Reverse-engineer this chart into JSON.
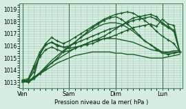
{
  "title": "",
  "xlabel": "Pression niveau de la mer( hPa )",
  "ylim": [
    1012.5,
    1019.5
  ],
  "yticks": [
    1013,
    1014,
    1015,
    1016,
    1017,
    1018,
    1019
  ],
  "day_labels": [
    "Ven",
    "Sam",
    "Dim",
    "Lun"
  ],
  "day_positions": [
    0,
    8,
    16,
    24
  ],
  "bg_color": "#d4ede0",
  "grid_color": "#aecfbe",
  "line_color": "#1a5c28",
  "total_points": 28,
  "series": [
    [
      1013.1,
      1013.0,
      1013.5,
      1015.3,
      1016.1,
      1016.3,
      1016.1,
      1015.9,
      1015.8,
      1015.9,
      1016.0,
      1016.1,
      1016.2,
      1016.4,
      1016.6,
      1016.7,
      1016.9,
      1017.1,
      1017.3,
      1017.5,
      1017.6,
      1017.7,
      1017.8,
      1017.6,
      1018.2,
      1017.8,
      1017.7,
      1015.5
    ],
    [
      1013.1,
      1013.2,
      1014.2,
      1015.1,
      1015.7,
      1015.9,
      1015.7,
      1015.5,
      1015.6,
      1015.8,
      1016.0,
      1016.2,
      1016.4,
      1016.6,
      1016.8,
      1017.1,
      1017.4,
      1017.7,
      1018.0,
      1018.3,
      1018.4,
      1018.5,
      1018.6,
      1018.4,
      1017.9,
      1017.6,
      1017.3,
      1015.5
    ],
    [
      1013.2,
      1013.3,
      1014.4,
      1015.5,
      1016.2,
      1016.7,
      1016.4,
      1016.2,
      1016.4,
      1016.7,
      1017.0,
      1017.3,
      1017.6,
      1017.9,
      1018.2,
      1018.4,
      1018.6,
      1018.7,
      1018.8,
      1018.7,
      1018.4,
      1018.1,
      1017.7,
      1017.2,
      1016.8,
      1016.5,
      1016.2,
      1015.5
    ],
    [
      1013.0,
      1013.2,
      1013.9,
      1015.3,
      1016.1,
      1016.3,
      1016.0,
      1015.9,
      1016.0,
      1016.2,
      1016.4,
      1016.6,
      1016.8,
      1017.0,
      1017.2,
      1017.4,
      1017.5,
      1017.7,
      1017.9,
      1018.1,
      1018.2,
      1018.3,
      1018.4,
      1018.2,
      1017.8,
      1017.5,
      1017.2,
      1015.5
    ],
    [
      1013.1,
      1013.0,
      1013.3,
      1013.7,
      1014.1,
      1014.6,
      1015.0,
      1015.5,
      1015.9,
      1016.3,
      1016.7,
      1017.1,
      1017.5,
      1017.8,
      1018.1,
      1018.3,
      1018.4,
      1018.2,
      1017.8,
      1017.4,
      1016.9,
      1016.4,
      1016.1,
      1015.7,
      1015.4,
      1015.3,
      1015.4,
      1015.5
    ],
    [
      1013.1,
      1013.1,
      1013.4,
      1013.8,
      1014.3,
      1014.8,
      1015.2,
      1015.6,
      1016.0,
      1016.3,
      1016.7,
      1017.0,
      1017.3,
      1017.6,
      1017.8,
      1017.9,
      1017.9,
      1017.8,
      1017.5,
      1017.2,
      1016.8,
      1016.4,
      1016.1,
      1015.8,
      1015.5,
      1015.4,
      1015.5,
      1015.5
    ],
    [
      1013.2,
      1013.1,
      1013.4,
      1013.8,
      1014.2,
      1014.6,
      1014.9,
      1015.2,
      1015.5,
      1015.8,
      1016.0,
      1016.2,
      1016.4,
      1016.5,
      1016.6,
      1016.6,
      1016.6,
      1016.5,
      1016.4,
      1016.3,
      1016.1,
      1015.9,
      1015.7,
      1015.6,
      1015.5,
      1015.5,
      1015.6,
      1015.6
    ],
    [
      1013.2,
      1013.1,
      1013.4,
      1013.7,
      1014.0,
      1014.3,
      1014.6,
      1014.8,
      1015.0,
      1015.2,
      1015.3,
      1015.4,
      1015.5,
      1015.5,
      1015.5,
      1015.5,
      1015.4,
      1015.4,
      1015.3,
      1015.3,
      1015.2,
      1015.1,
      1015.0,
      1015.0,
      1015.0,
      1015.1,
      1015.2,
      1015.3
    ]
  ],
  "marker_series": [
    0,
    1,
    2,
    3,
    4
  ],
  "marker_size": 2.5,
  "line_widths": [
    1.0,
    1.0,
    1.0,
    1.0,
    1.0,
    1.0,
    1.0,
    1.0
  ]
}
